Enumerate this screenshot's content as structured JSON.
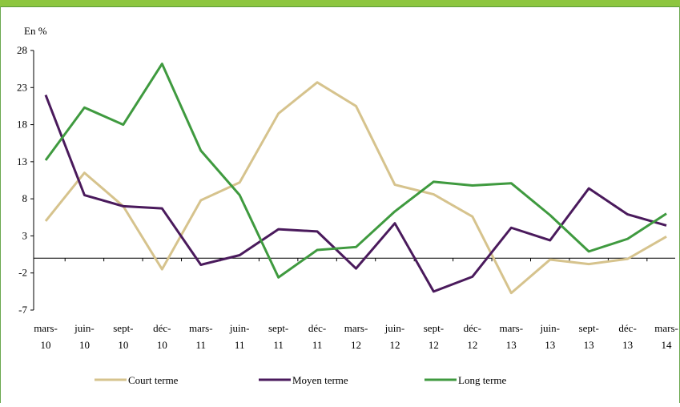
{
  "chart_data": {
    "type": "line",
    "title": "En %",
    "categories": [
      "mars-10",
      "juin-10",
      "sept-10",
      "déc-10",
      "mars-11",
      "juin-11",
      "sept-11",
      "déc-11",
      "mars-12",
      "juin-12",
      "sept-12",
      "déc-12",
      "mars-13",
      "juin-13",
      "sept-13",
      "déc-13",
      "mars-14"
    ],
    "series": [
      {
        "name": "Court terme",
        "color": "#d6c38d",
        "values": [
          5,
          11.5,
          7,
          -1.5,
          7.8,
          10.2,
          19.5,
          23.7,
          20.5,
          9.9,
          8.6,
          5.6,
          -4.7,
          -0.2,
          -0.8,
          -0.1,
          2.9
        ]
      },
      {
        "name": "Moyen terme",
        "color": "#4a1a5c",
        "values": [
          22,
          8.5,
          7,
          6.7,
          -0.9,
          0.4,
          3.9,
          3.6,
          -1.4,
          4.7,
          -4.5,
          -2.5,
          4.1,
          2.4,
          9.4,
          5.9,
          4.4
        ]
      },
      {
        "name": "Long terme",
        "color": "#3f9a3f",
        "values": [
          13.2,
          20.3,
          18,
          26.2,
          14.5,
          8.5,
          -2.6,
          1.1,
          1.5,
          6.3,
          10.3,
          9.8,
          10.1,
          5.8,
          0.9,
          2.6,
          6.0
        ]
      }
    ],
    "ylim": [
      -7,
      28
    ],
    "yticks": [
      -7,
      -2,
      3,
      8,
      13,
      18,
      23,
      28
    ]
  }
}
